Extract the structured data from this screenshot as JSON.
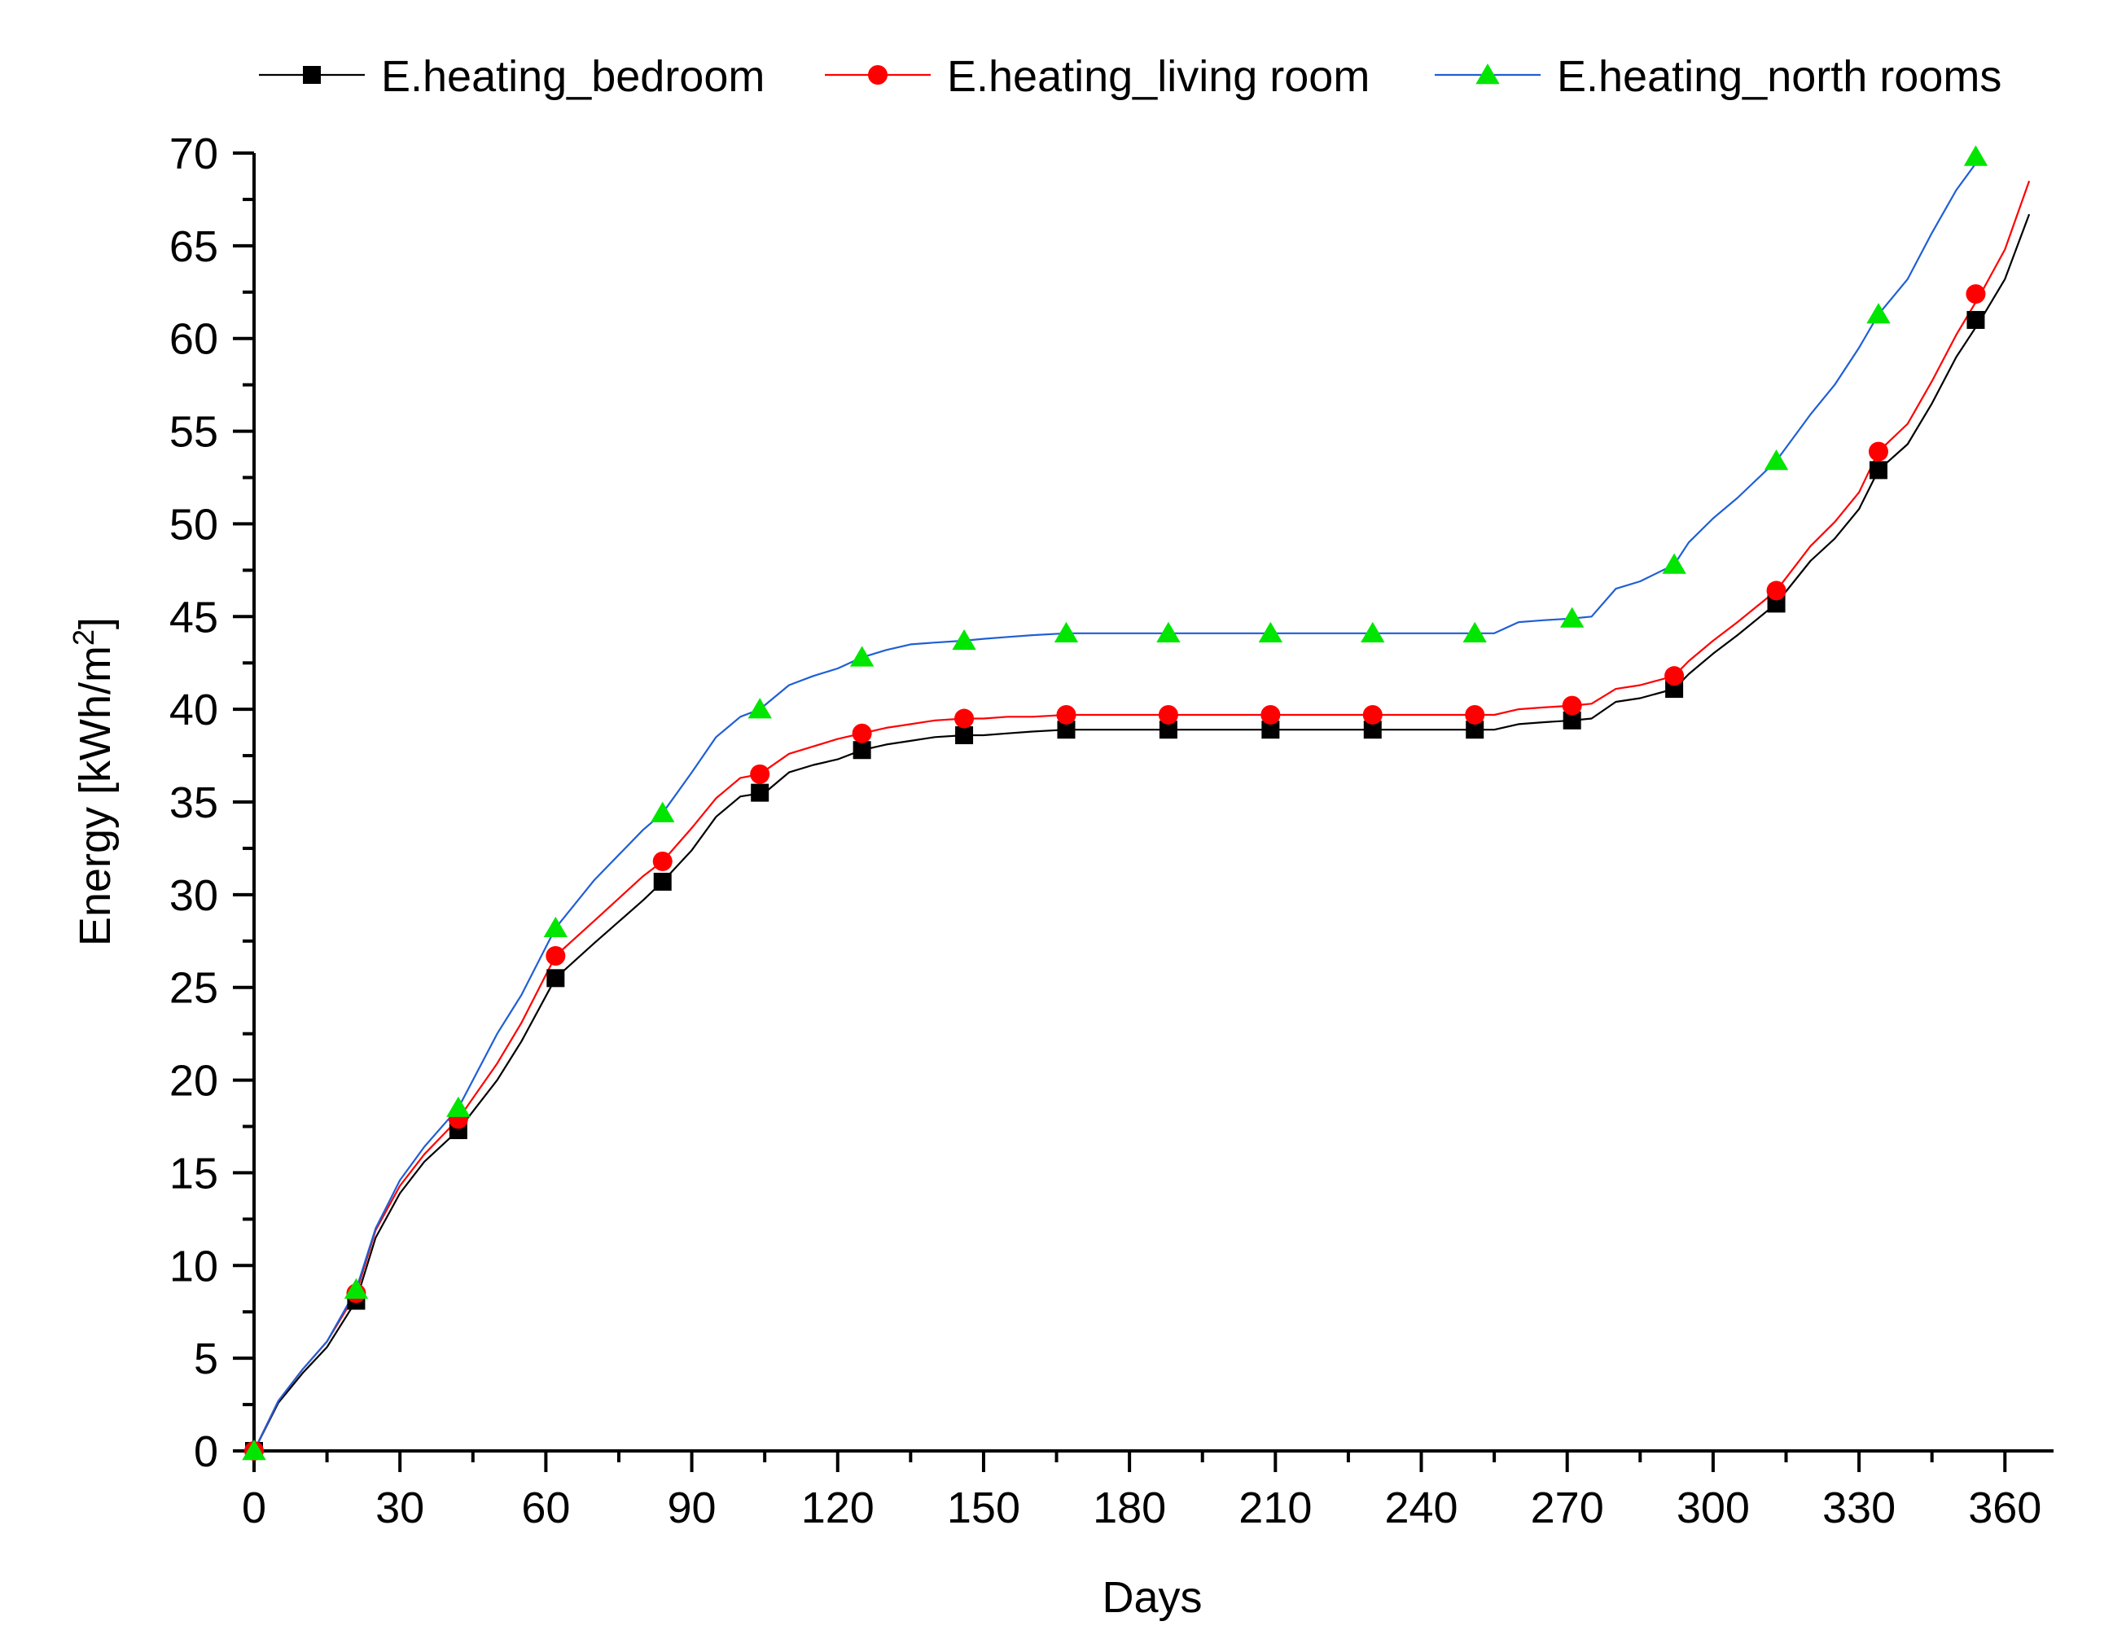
{
  "chart_data": {
    "type": "line",
    "title": "",
    "xlabel": "Days",
    "ylabel": {
      "main": "Energy [kWh/m",
      "sup": "2",
      "tail": "]"
    },
    "xlim": [
      0,
      370
    ],
    "ylim": [
      0,
      70
    ],
    "xticks": [
      0,
      30,
      60,
      90,
      120,
      150,
      180,
      210,
      240,
      270,
      300,
      330,
      360
    ],
    "yticks": [
      0,
      5,
      10,
      15,
      20,
      25,
      30,
      35,
      40,
      45,
      50,
      55,
      60,
      65,
      70
    ],
    "legend_position": "top",
    "series": [
      {
        "name": "E.heating_bedroom",
        "line_color": "#000000",
        "marker_color": "#000000",
        "marker": "square",
        "x": [
          0,
          5,
          10,
          15,
          21,
          25,
          30,
          35,
          42,
          50,
          55,
          62,
          70,
          80,
          84,
          90,
          95,
          100,
          105,
          110,
          115,
          120,
          125,
          130,
          135,
          140,
          146,
          150,
          155,
          160,
          167,
          180,
          188,
          200,
          209,
          220,
          230,
          240,
          251,
          255,
          260,
          265,
          271,
          275,
          280,
          285,
          292,
          295,
          300,
          305,
          313,
          320,
          325,
          330,
          334,
          340,
          345,
          350,
          355,
          360,
          365
        ],
        "y": [
          0,
          2.6,
          4.2,
          5.6,
          8.1,
          11.5,
          13.9,
          15.6,
          17.3,
          20.0,
          22.1,
          25.5,
          27.4,
          29.7,
          30.7,
          32.4,
          34.2,
          35.3,
          35.5,
          36.6,
          37.0,
          37.3,
          37.8,
          38.1,
          38.3,
          38.5,
          38.6,
          38.6,
          38.7,
          38.8,
          38.9,
          38.9,
          38.9,
          38.9,
          38.9,
          38.9,
          38.9,
          38.9,
          38.9,
          38.9,
          39.2,
          39.3,
          39.4,
          39.5,
          40.4,
          40.6,
          41.1,
          41.9,
          43.0,
          44.0,
          45.7,
          48.0,
          49.2,
          50.8,
          52.9,
          54.3,
          56.5,
          59.0,
          61.0,
          63.2,
          66.7
        ],
        "marker_x": [
          0,
          21,
          42,
          62,
          84,
          104,
          125,
          146,
          167,
          188,
          209,
          230,
          251,
          271,
          292,
          313,
          334,
          354
        ],
        "marker_y": [
          0,
          8.1,
          17.3,
          25.5,
          30.7,
          35.5,
          37.8,
          38.6,
          38.9,
          38.9,
          38.9,
          38.9,
          38.9,
          39.4,
          41.1,
          45.7,
          52.9,
          61.0
        ]
      },
      {
        "name": "E.heating_living room",
        "line_color": "#ff0000",
        "marker_color": "#ff0000",
        "marker": "circle",
        "x": [
          0,
          5,
          10,
          15,
          21,
          25,
          30,
          35,
          42,
          50,
          55,
          62,
          70,
          80,
          84,
          90,
          95,
          100,
          104,
          110,
          115,
          120,
          125,
          130,
          135,
          140,
          146,
          150,
          155,
          160,
          167,
          180,
          188,
          200,
          209,
          220,
          230,
          240,
          251,
          255,
          260,
          265,
          271,
          275,
          280,
          285,
          292,
          295,
          300,
          305,
          313,
          320,
          325,
          330,
          334,
          340,
          345,
          350,
          355,
          360,
          365
        ],
        "y": [
          0,
          2.7,
          4.4,
          5.9,
          8.5,
          11.9,
          14.3,
          16.0,
          17.9,
          20.9,
          23.1,
          26.7,
          28.6,
          31.0,
          31.8,
          33.6,
          35.2,
          36.3,
          36.5,
          37.6,
          38.0,
          38.4,
          38.7,
          39.0,
          39.2,
          39.4,
          39.5,
          39.5,
          39.6,
          39.6,
          39.7,
          39.7,
          39.7,
          39.7,
          39.7,
          39.7,
          39.7,
          39.7,
          39.7,
          39.7,
          40.0,
          40.1,
          40.2,
          40.3,
          41.1,
          41.3,
          41.8,
          42.6,
          43.7,
          44.7,
          46.4,
          48.8,
          50.1,
          51.7,
          53.9,
          55.4,
          57.7,
          60.2,
          62.4,
          64.8,
          68.5
        ],
        "marker_x": [
          0,
          21,
          42,
          62,
          84,
          104,
          125,
          146,
          167,
          188,
          209,
          230,
          251,
          271,
          292,
          313,
          334,
          354
        ],
        "marker_y": [
          0,
          8.5,
          17.9,
          26.7,
          31.8,
          36.5,
          38.7,
          39.5,
          39.7,
          39.7,
          39.7,
          39.7,
          39.7,
          40.2,
          41.8,
          46.4,
          53.9,
          62.4
        ]
      },
      {
        "name": "E.heating_north rooms",
        "line_color": "#1f5fd6",
        "marker_color": "#00e600",
        "marker": "triangle",
        "x": [
          0,
          5,
          10,
          15,
          21,
          25,
          30,
          35,
          42,
          50,
          55,
          62,
          70,
          80,
          84,
          90,
          95,
          100,
          104,
          110,
          115,
          120,
          125,
          130,
          135,
          140,
          146,
          150,
          155,
          160,
          167,
          180,
          188,
          200,
          209,
          220,
          230,
          240,
          251,
          255,
          260,
          265,
          271,
          275,
          280,
          285,
          292,
          295,
          300,
          305,
          313,
          320,
          325,
          330,
          334,
          340,
          345,
          350,
          355
        ],
        "y": [
          0,
          2.7,
          4.4,
          5.9,
          8.7,
          12.0,
          14.6,
          16.4,
          18.5,
          22.5,
          24.6,
          28.2,
          30.8,
          33.5,
          34.4,
          36.6,
          38.5,
          39.6,
          40.0,
          41.3,
          41.8,
          42.2,
          42.8,
          43.2,
          43.5,
          43.6,
          43.7,
          43.8,
          43.9,
          44.0,
          44.1,
          44.1,
          44.1,
          44.1,
          44.1,
          44.1,
          44.1,
          44.1,
          44.1,
          44.1,
          44.7,
          44.8,
          44.9,
          45.0,
          46.5,
          46.9,
          47.8,
          49.0,
          50.3,
          51.4,
          53.4,
          55.9,
          57.5,
          59.5,
          61.3,
          63.2,
          65.7,
          68.0,
          69.8
        ],
        "marker_x": [
          0,
          21,
          42,
          62,
          84,
          104,
          125,
          146,
          167,
          188,
          209,
          230,
          251,
          271,
          292,
          313,
          334,
          354
        ],
        "marker_y": [
          0,
          8.7,
          18.5,
          28.2,
          34.4,
          40.0,
          42.8,
          43.7,
          44.1,
          44.1,
          44.1,
          44.1,
          44.1,
          44.9,
          47.8,
          53.4,
          61.3,
          69.8
        ]
      }
    ]
  }
}
